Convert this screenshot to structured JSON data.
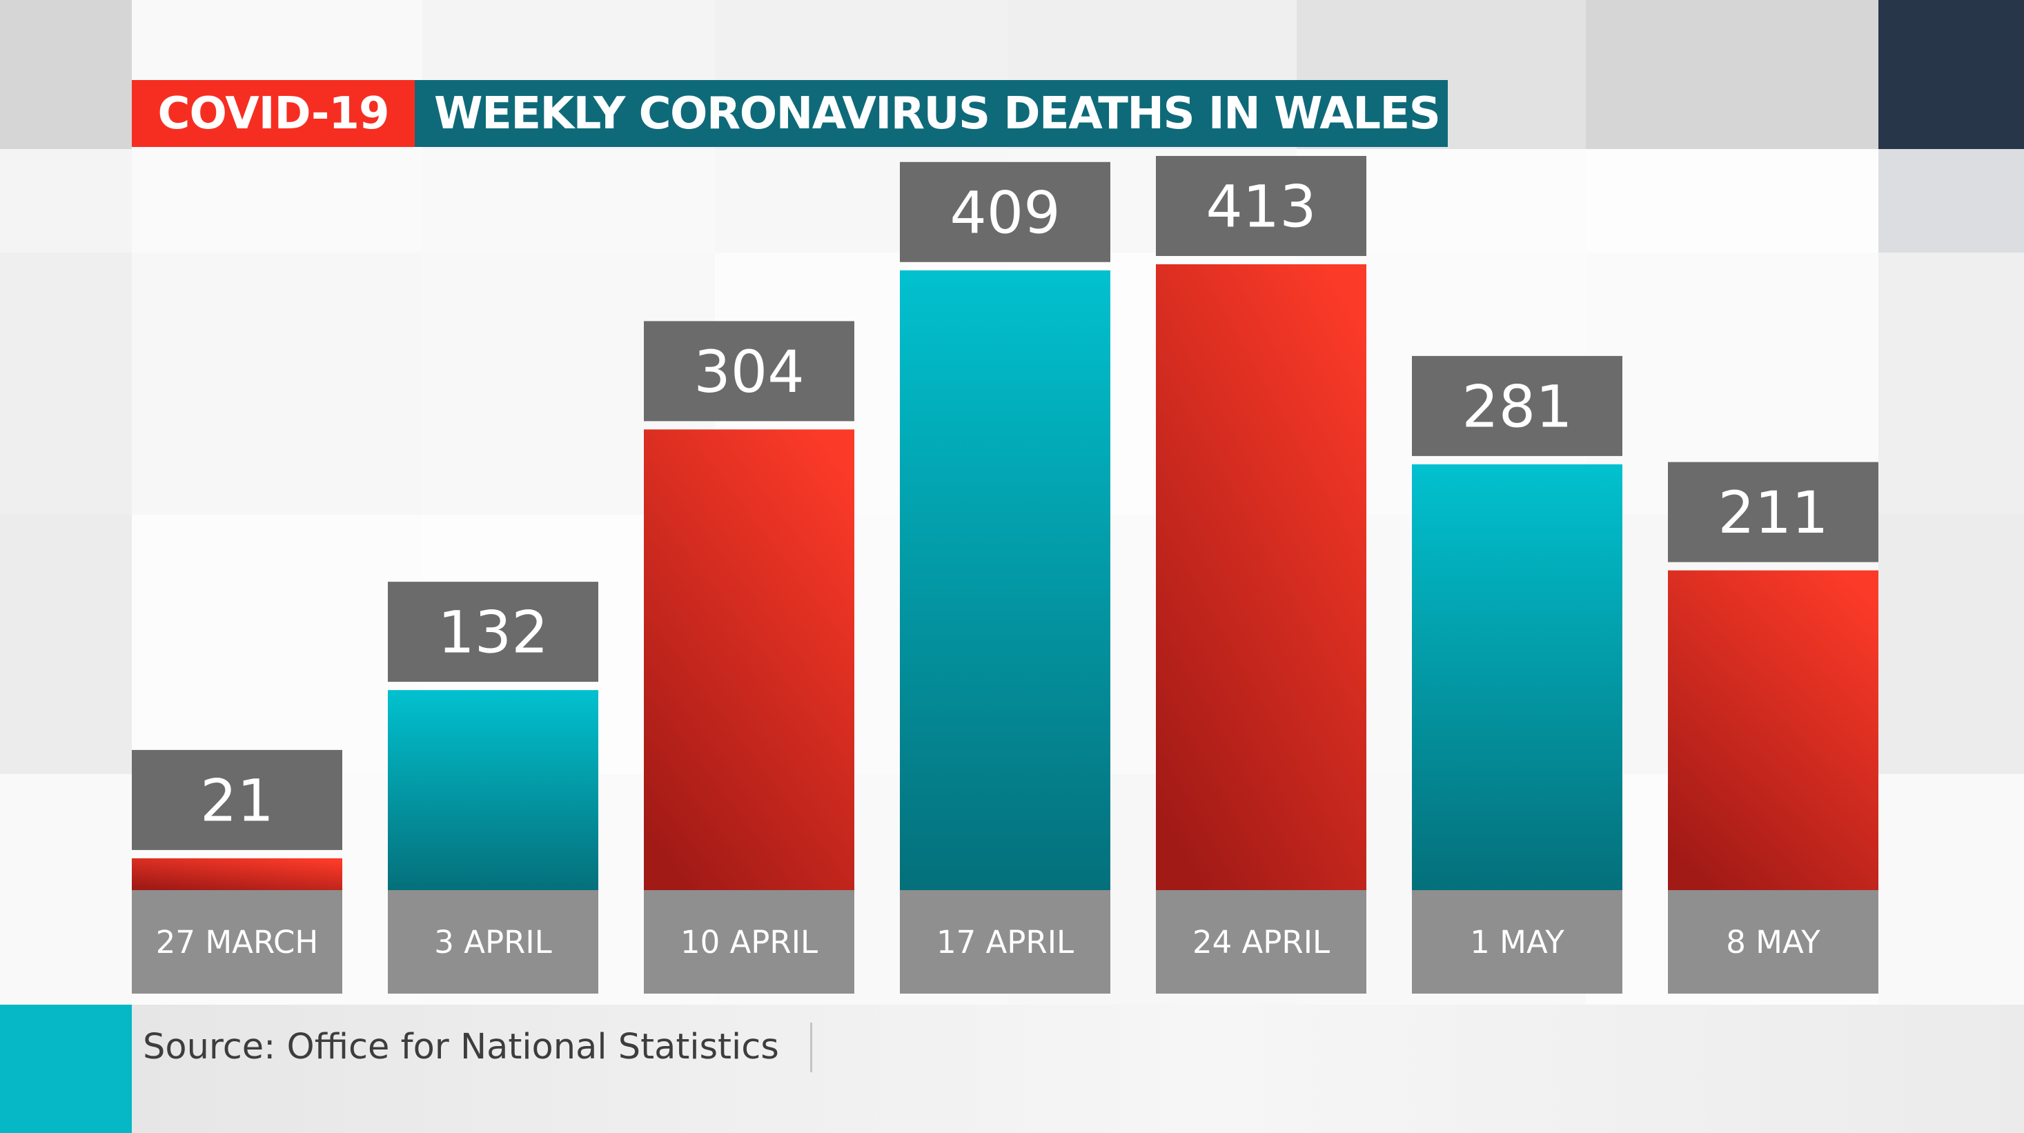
{
  "header": {
    "tag": "COVID-19",
    "title": "WEEKLY CORONAVIRUS DEATHS IN WALES"
  },
  "source": "Source: Office for National Statistics",
  "colors": {
    "tag_bg": "#f62e22",
    "title_bg": "#0e6a79",
    "label_box": "#6b6b6b",
    "category_box": "#8f8f8f",
    "teal_top": "#02c1cf",
    "teal_bottom": "#04707b",
    "red_top": "#fb3a28",
    "red_bottom": "#a11a16",
    "corner_navy": "#283649",
    "source_accent": "#06b7c5"
  },
  "chart_data": {
    "type": "bar",
    "title": "WEEKLY CORONAVIRUS DEATHS IN WALES",
    "xlabel": "",
    "ylabel": "",
    "categories": [
      "27 MARCH",
      "3 APRIL",
      "10 APRIL",
      "17 APRIL",
      "24 APRIL",
      "1 MAY",
      "8 MAY"
    ],
    "values": [
      21,
      132,
      304,
      409,
      413,
      281,
      211
    ],
    "bar_colors": [
      "red",
      "teal",
      "red",
      "teal",
      "red",
      "teal",
      "red"
    ],
    "ylim": [
      0,
      413
    ],
    "grid": false,
    "legend": "none"
  }
}
